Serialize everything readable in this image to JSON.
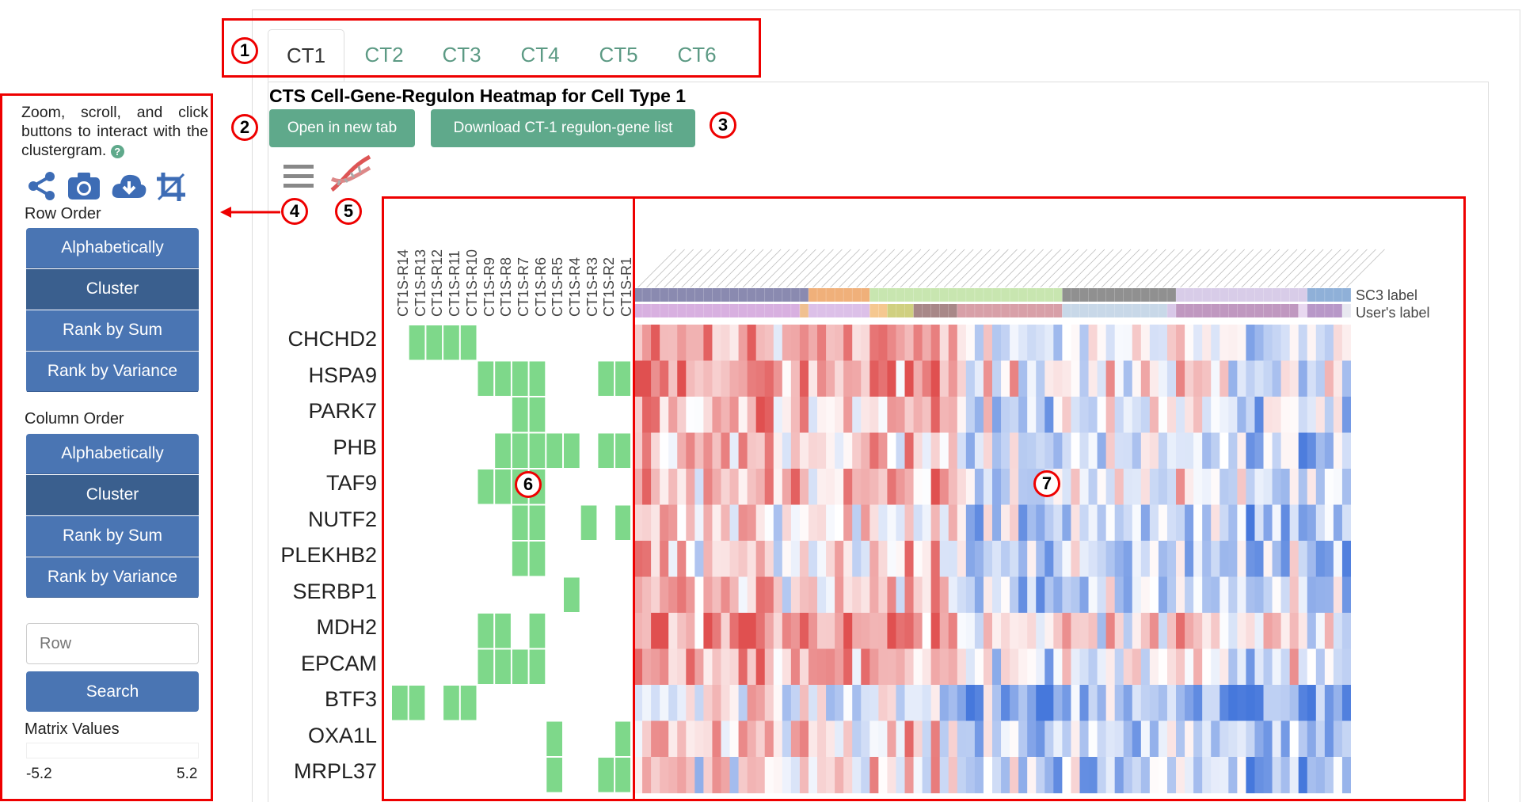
{
  "tabs": [
    {
      "label": "CT1",
      "active": true
    },
    {
      "label": "CT2"
    },
    {
      "label": "CT3"
    },
    {
      "label": "CT4"
    },
    {
      "label": "CT5"
    },
    {
      "label": "CT6"
    }
  ],
  "heatmap_title": "CTS Cell-Gene-Regulon Heatmap for Cell Type 1",
  "buttons": {
    "open_new_tab": "Open in new tab",
    "download": "Download CT-1 regulon-gene list"
  },
  "sidebar": {
    "help_text": "Zoom, scroll, and click buttons to interact with the clustergram.",
    "icons": [
      "share-icon",
      "camera-icon",
      "download-icon",
      "crop-icon"
    ],
    "row_order_label": "Row Order",
    "row_order_options": [
      "Alphabetically",
      "Cluster",
      "Rank by Sum",
      "Rank by Variance"
    ],
    "row_order_selected": "Cluster",
    "column_order_label": "Column Order",
    "column_order_options": [
      "Alphabetically",
      "Cluster",
      "Rank by Sum",
      "Rank by Variance"
    ],
    "column_order_selected": "Cluster",
    "search_placeholder": "Row",
    "search_button": "Search",
    "matrix_values_label": "Matrix Values",
    "min_value": "-5.2",
    "max_value": "5.2"
  },
  "toolbar_icons": [
    "menu-icon",
    "dna-icon"
  ],
  "markers": [
    "1",
    "2",
    "3",
    "4",
    "5",
    "6",
    "7"
  ],
  "regulons": [
    "CT1S-R14",
    "CT1S-R13",
    "CT1S-R12",
    "CT1S-R11",
    "CT1S-R10",
    "CT1S-R9",
    "CT1S-R8",
    "CT1S-R7",
    "CT1S-R6",
    "CT1S-R5",
    "CT1S-R4",
    "CT1S-R3",
    "CT1S-R2",
    "CT1S-R1"
  ],
  "genes": [
    "CHCHD2",
    "HSPA9",
    "PARK7",
    "PHB",
    "TAF9",
    "NUTF2",
    "PLEKHB2",
    "SERBP1",
    "MDH2",
    "EPCAM",
    "BTF3",
    "OXA1L",
    "MRPL37"
  ],
  "legend": {
    "sc3": "SC3 label",
    "user": "User's label"
  },
  "colors": {
    "green": "#7ed88a",
    "red_accent": "#e00000",
    "tab_green": "#5c9a84",
    "button_green": "#5fa98b",
    "sidebar_blue": "#4a75b3"
  }
}
